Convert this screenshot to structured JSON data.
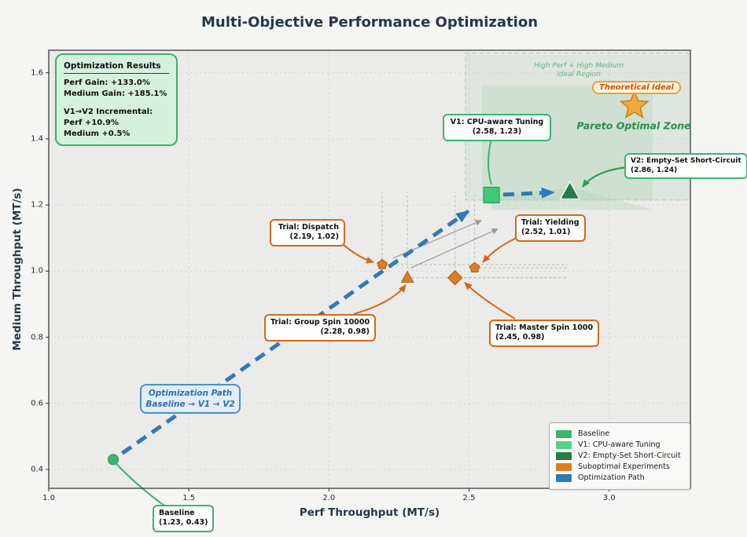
{
  "figure_title": "Multi-Objective Performance Optimization",
  "results_box": {
    "title": "Optimization Results",
    "perf_gain": "Perf Gain: +133.0%",
    "medium_gain": "Medium Gain: +185.1%",
    "incremental_header": "V1→V2 Incremental:",
    "incremental_perf": "Perf +10.9%",
    "incremental_medium": "Medium +0.5%"
  },
  "region_labels": {
    "ideal_line1": "High Perf + High Medium",
    "ideal_line2": "Ideal Region",
    "theoretical_ideal": "Theoretical Ideal",
    "pareto_zone": "Pareto Optimal Zone"
  },
  "path_label": {
    "line1": "Optimization Path",
    "line2": "Baseline → V1 → V2"
  },
  "annotations": {
    "v1": {
      "title": "V1: CPU-aware Tuning",
      "coords": "(2.58, 1.23)"
    },
    "v2": {
      "title": "V2: Empty-Set Short-Circuit",
      "coords": "(2.86, 1.24)"
    },
    "dispatch": {
      "title": "Trial: Dispatch",
      "coords": "(2.19, 1.02)"
    },
    "yielding": {
      "title": "Trial: Yielding",
      "coords": "(2.52, 1.01)"
    },
    "group_spin": {
      "title": "Trial: Group Spin 10000",
      "coords": "(2.28, 0.98)"
    },
    "master_spin": {
      "title": "Trial: Master Spin 1000",
      "coords": "(2.45, 0.98)"
    },
    "baseline": {
      "title": "Baseline",
      "coords": "(1.23, 0.43)"
    }
  },
  "chart_data": {
    "type": "scatter",
    "title": "Multi-Objective Performance Optimization",
    "xlabel": "Perf Throughput (MT/s)",
    "ylabel": "Medium Throughput (MT/s)",
    "xlim": [
      1.0,
      3.29
    ],
    "ylim": [
      0.343,
      1.668
    ],
    "x_ticks": [
      "1.0",
      "1.5",
      "2.0",
      "2.5",
      "3.0"
    ],
    "y_ticks": [
      "0.4",
      "0.6",
      "0.8",
      "1.0",
      "1.2",
      "1.4",
      "1.6"
    ],
    "grid": true,
    "points": [
      {
        "name": "Baseline",
        "x": 1.23,
        "y": 0.43,
        "marker": "circle",
        "size": 6.5,
        "color": "#3cb371",
        "edge": "#2d9b5e",
        "role": "milestone"
      },
      {
        "name": "V1: CPU-aware Tuning",
        "x": 2.58,
        "y": 1.23,
        "marker": "square",
        "size": 10,
        "color": "#3ec977",
        "edge": "#2a9a57",
        "role": "milestone"
      },
      {
        "name": "V2: Empty-Set Short-Circuit",
        "x": 2.86,
        "y": 1.24,
        "marker": "triangle",
        "size": 13,
        "color": "#2a7a47",
        "edge": "#eef4ee",
        "role": "milestone"
      },
      {
        "name": "Trial: Dispatch",
        "x": 2.19,
        "y": 1.02,
        "marker": "pentagon",
        "size": 6.5,
        "color": "#dd7e26",
        "edge": "#b05f12",
        "role": "trial"
      },
      {
        "name": "Trial: Yielding",
        "x": 2.52,
        "y": 1.01,
        "marker": "pentagon",
        "size": 6.5,
        "color": "#dd7e26",
        "edge": "#b05f12",
        "role": "trial"
      },
      {
        "name": "Trial: Group Spin 10000",
        "x": 2.28,
        "y": 0.98,
        "marker": "triangle",
        "size": 8,
        "color": "#dd7e26",
        "edge": "#b05f12",
        "role": "trial"
      },
      {
        "name": "Trial: Master Spin 1000",
        "x": 2.45,
        "y": 0.98,
        "marker": "diamond",
        "size": 9,
        "color": "#dd7e26",
        "edge": "#b05f12",
        "role": "trial"
      },
      {
        "name": "Theoretical Ideal",
        "x": 3.09,
        "y": 1.5,
        "marker": "star",
        "size": 18,
        "color": "#f2a93b",
        "edge": "#c87f1d",
        "role": "ideal"
      }
    ],
    "zones": [
      {
        "name": "ideal-region",
        "x0": 2.487,
        "x1": 3.29,
        "y0": 1.215,
        "y1": 1.659,
        "fill": "rgba(150,205,165,0.14)",
        "border": "#a8cfae"
      },
      {
        "name": "pareto-optimal-zone",
        "x0": 2.546,
        "x1": 3.155,
        "y0": 1.215,
        "y1": 1.56,
        "fill": "rgba(150,205,165,0.22)"
      }
    ],
    "wedge": [
      [
        2.58,
        1.228
      ],
      [
        2.87,
        1.252
      ],
      [
        3.16,
        1.185
      ],
      [
        2.58,
        1.185
      ]
    ],
    "crosshair_to": {
      "x": 2.85,
      "y": 1.24
    },
    "improvement_arrows": [
      {
        "x1": 2.229,
        "y1": 1.039,
        "x2": 2.543,
        "y2": 1.153
      },
      {
        "x1": 2.293,
        "y1": 1.01,
        "x2": 2.602,
        "y2": 1.127
      }
    ],
    "path_segments": [
      {
        "from": [
          1.23,
          0.43
        ],
        "to": [
          2.58,
          1.23
        ]
      },
      {
        "from": [
          2.58,
          1.23
        ],
        "to": [
          2.86,
          1.24
        ]
      }
    ],
    "legend": [
      {
        "label": "Baseline",
        "color": "#3cb371"
      },
      {
        "label": "V1: CPU-aware Tuning",
        "color": "#52d683",
        "dashed": true
      },
      {
        "label": "V2: Empty-Set Short-Circuit",
        "color": "#2a7a47"
      },
      {
        "label": "Suboptimal Experiments",
        "color": "#dd7e26"
      },
      {
        "label": "Optimization Path",
        "color": "#3279b7"
      }
    ],
    "colors": {
      "accent_green": "#3cb371",
      "dark_green": "#2a7a47",
      "orange": "#d2691e",
      "blue": "#3279b7"
    }
  }
}
